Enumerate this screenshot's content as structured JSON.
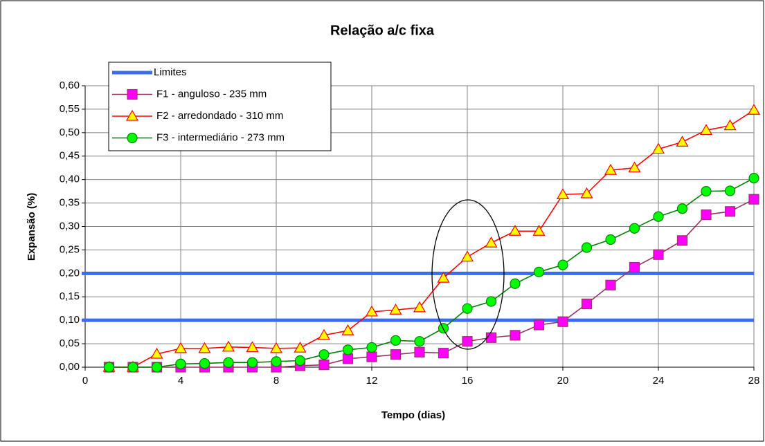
{
  "chart_data": {
    "type": "line",
    "title": "Relação a/c fixa",
    "xlabel": "Tempo (dias)",
    "ylabel": "Expansão (%)",
    "x": [
      1,
      2,
      3,
      4,
      5,
      6,
      7,
      8,
      9,
      10,
      11,
      12,
      13,
      14,
      15,
      16,
      17,
      18,
      19,
      20,
      21,
      22,
      23,
      24,
      25,
      26,
      27,
      28
    ],
    "reference_lines": {
      "name": "Limites",
      "color": "#3b6cf0",
      "values": [
        0.1,
        0.2
      ]
    },
    "series": [
      {
        "name": "F1 - anguloso - 235 mm",
        "color": "#993366",
        "marker": "square",
        "marker_fill": "#ff00ff",
        "values": [
          0,
          0,
          0,
          0,
          0,
          0,
          0,
          0,
          0.003,
          0.005,
          0.018,
          0.022,
          0.027,
          0.032,
          0.03,
          0.055,
          0.063,
          0.068,
          0.09,
          0.097,
          0.135,
          0.175,
          0.213,
          0.24,
          0.27,
          0.325,
          0.332,
          0.358
        ]
      },
      {
        "name": "F2 - arredondado - 310 mm",
        "color": "#ff0000",
        "marker": "triangle",
        "marker_fill": "#ffff00",
        "values": [
          0,
          0,
          0.028,
          0.04,
          0.04,
          0.043,
          0.042,
          0.04,
          0.041,
          0.068,
          0.078,
          0.118,
          0.122,
          0.127,
          0.19,
          0.235,
          0.265,
          0.29,
          0.29,
          0.368,
          0.37,
          0.42,
          0.425,
          0.465,
          0.48,
          0.505,
          0.515,
          0.548
        ]
      },
      {
        "name": "F3 - intermediário - 273 mm",
        "color": "#008000",
        "marker": "circle",
        "marker_fill": "#00ff00",
        "values": [
          0,
          0,
          0,
          0.007,
          0.008,
          0.01,
          0.01,
          0.012,
          0.014,
          0.027,
          0.037,
          0.042,
          0.057,
          0.055,
          0.083,
          0.125,
          0.14,
          0.178,
          0.203,
          0.218,
          0.255,
          0.272,
          0.296,
          0.321,
          0.338,
          0.375,
          0.376,
          0.403
        ]
      }
    ],
    "xlim": [
      0,
      28
    ],
    "xticks": [
      0,
      4,
      8,
      12,
      16,
      20,
      24,
      28
    ],
    "ylim": [
      0,
      0.6
    ],
    "yticks": [
      {
        "value": 0,
        "label": "0,00"
      },
      {
        "value": 0.05,
        "label": "0,05"
      },
      {
        "value": 0.1,
        "label": "0,10"
      },
      {
        "value": 0.15,
        "label": "0,15"
      },
      {
        "value": 0.2,
        "label": "0,20"
      },
      {
        "value": 0.25,
        "label": "0,25"
      },
      {
        "value": 0.3,
        "label": "0,30"
      },
      {
        "value": 0.35,
        "label": "0,35"
      },
      {
        "value": 0.4,
        "label": "0,40"
      },
      {
        "value": 0.45,
        "label": "0,45"
      },
      {
        "value": 0.5,
        "label": "0,50"
      },
      {
        "value": 0.55,
        "label": "0,55"
      },
      {
        "value": 0.6,
        "label": "0,60"
      }
    ],
    "grid": true
  }
}
